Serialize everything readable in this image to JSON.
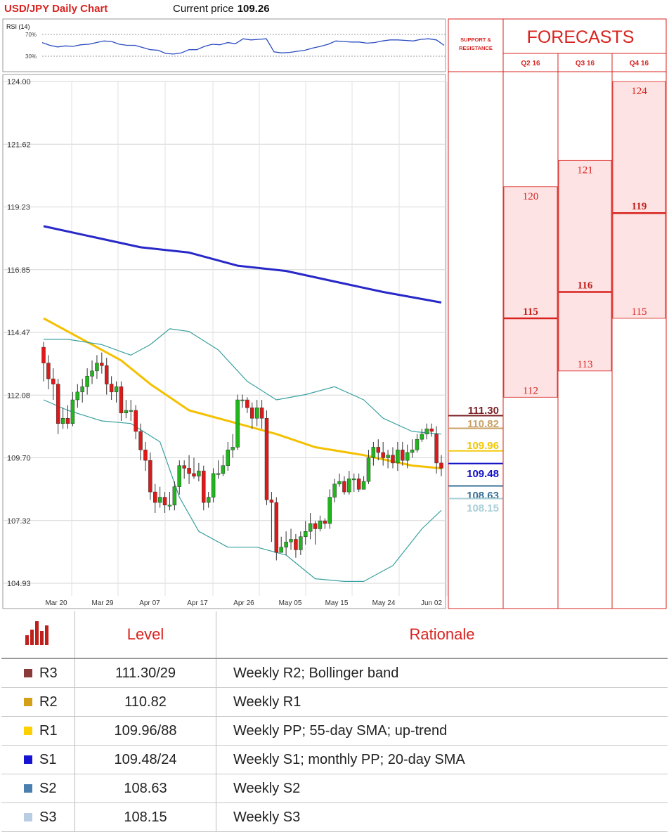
{
  "header": {
    "title": "USD/JPY Daily Chart",
    "price_label": "Current price",
    "price_value": "109.26"
  },
  "rsi": {
    "label": "RSI (14)",
    "levels": [
      "70%",
      "30%"
    ],
    "values": [
      55,
      50,
      47,
      49,
      48,
      51,
      52,
      55,
      58,
      57,
      52,
      50,
      50,
      46,
      42,
      41,
      35,
      34,
      36,
      42,
      42,
      48,
      52,
      51,
      55,
      53,
      62,
      60,
      61,
      62,
      38,
      36,
      37,
      39,
      41,
      45,
      48,
      52,
      58,
      57,
      56,
      56,
      54,
      55,
      58,
      60,
      60,
      59,
      58,
      61,
      62,
      60,
      50
    ],
    "color": "#2a4cc0"
  },
  "support_resistance_title": [
    "SUPPORT &",
    "RESISTANCE"
  ],
  "forecasts": {
    "title": "FORECASTS",
    "columns": [
      {
        "label": "Q2 16",
        "high": 120,
        "mid": 115,
        "low": 112,
        "high_label": "120",
        "mid_label": "115",
        "low_label": "112"
      },
      {
        "label": "Q3 16",
        "high": 121,
        "mid": 116,
        "low": 113,
        "high_label": "121",
        "mid_label": "116",
        "low_label": "113"
      },
      {
        "label": "Q4 16",
        "high": 124,
        "mid": 119,
        "low": 115,
        "high_label": "124",
        "mid_label": "119",
        "low_label": "115"
      }
    ]
  },
  "chart_data": {
    "type": "candlestick",
    "title": "USD/JPY Daily Chart",
    "y_ticks": [
      "124.00",
      "121.62",
      "119.23",
      "116.85",
      "114.47",
      "112.08",
      "109.70",
      "107.32",
      "104.93"
    ],
    "ylim": [
      104.93,
      124.0
    ],
    "x_ticks": [
      "Mar 20",
      "Mar 29",
      "Apr 07",
      "Apr 17",
      "Apr 26",
      "May 05",
      "May 15",
      "May 24",
      "Jun 02"
    ],
    "grid": true,
    "candles": [
      [
        113.9,
        113.3,
        114.1,
        112.6
      ],
      [
        113.3,
        112.7,
        113.6,
        112.3
      ],
      [
        112.7,
        112.5,
        113.1,
        111.9
      ],
      [
        112.5,
        111.0,
        112.7,
        110.6
      ],
      [
        111.0,
        111.2,
        111.6,
        110.8
      ],
      [
        111.2,
        111.0,
        111.7,
        110.8
      ],
      [
        111.0,
        111.9,
        112.2,
        110.9
      ],
      [
        111.9,
        112.2,
        112.5,
        111.6
      ],
      [
        112.2,
        112.4,
        112.7,
        111.8
      ],
      [
        112.4,
        112.8,
        113.1,
        112.1
      ],
      [
        112.8,
        113.0,
        113.4,
        112.5
      ],
      [
        113.0,
        113.3,
        113.6,
        112.7
      ],
      [
        113.3,
        113.2,
        113.7,
        112.9
      ],
      [
        113.2,
        112.5,
        113.5,
        112.1
      ],
      [
        112.5,
        112.2,
        112.8,
        111.9
      ],
      [
        112.2,
        112.4,
        112.6,
        111.8
      ],
      [
        112.4,
        111.4,
        112.6,
        111.1
      ],
      [
        111.4,
        111.5,
        111.9,
        111.2
      ],
      [
        111.5,
        111.5,
        111.9,
        111.1
      ],
      [
        111.5,
        110.7,
        111.7,
        110.4
      ],
      [
        110.7,
        110.0,
        111.0,
        109.6
      ],
      [
        110.0,
        109.6,
        110.3,
        109.2
      ],
      [
        109.6,
        108.4,
        109.9,
        108.1
      ],
      [
        108.4,
        108.0,
        108.7,
        107.6
      ],
      [
        108.0,
        108.2,
        108.6,
        107.8
      ],
      [
        108.2,
        107.9,
        108.4,
        107.6
      ],
      [
        107.9,
        107.9,
        108.4,
        107.7
      ],
      [
        107.9,
        108.6,
        108.8,
        107.7
      ],
      [
        108.6,
        109.4,
        109.6,
        108.3
      ],
      [
        109.4,
        109.3,
        109.6,
        108.9
      ],
      [
        109.3,
        109.1,
        109.8,
        108.7
      ],
      [
        109.1,
        109.0,
        109.7,
        108.9
      ],
      [
        109.0,
        109.2,
        109.5,
        108.8
      ],
      [
        109.2,
        108.0,
        109.4,
        107.7
      ],
      [
        108.0,
        108.2,
        108.4,
        107.8
      ],
      [
        108.2,
        109.1,
        109.3,
        108.0
      ],
      [
        109.1,
        109.1,
        109.6,
        108.9
      ],
      [
        109.1,
        109.4,
        109.8,
        109.0
      ],
      [
        109.4,
        110.0,
        110.3,
        109.2
      ],
      [
        110.0,
        110.1,
        110.6,
        109.7
      ],
      [
        110.1,
        111.9,
        112.1,
        110.0
      ],
      [
        111.9,
        111.9,
        112.1,
        111.6
      ],
      [
        111.9,
        111.6,
        112.0,
        111.4
      ],
      [
        111.6,
        111.2,
        111.8,
        110.8
      ],
      [
        111.2,
        111.6,
        111.9,
        110.9
      ],
      [
        111.6,
        111.2,
        111.9,
        110.8
      ],
      [
        111.2,
        108.1,
        111.5,
        107.9
      ],
      [
        108.1,
        108.0,
        108.4,
        106.5
      ],
      [
        108.0,
        106.1,
        108.2,
        105.8
      ],
      [
        106.1,
        106.3,
        106.7,
        106.1
      ],
      [
        106.3,
        106.5,
        106.9,
        106.0
      ],
      [
        106.5,
        106.6,
        107.0,
        106.2
      ],
      [
        106.6,
        106.2,
        106.8,
        105.9
      ],
      [
        106.2,
        106.7,
        106.9,
        106.0
      ],
      [
        106.7,
        106.9,
        107.3,
        106.4
      ],
      [
        106.9,
        107.2,
        107.6,
        106.6
      ],
      [
        107.2,
        107.0,
        107.3,
        106.4
      ],
      [
        107.0,
        107.3,
        107.5,
        106.9
      ],
      [
        107.3,
        107.2,
        107.4,
        107.0
      ],
      [
        107.2,
        108.2,
        108.5,
        107.0
      ],
      [
        108.2,
        108.7,
        108.9,
        108.0
      ],
      [
        108.7,
        108.8,
        109.1,
        108.6
      ],
      [
        108.8,
        108.4,
        109.0,
        108.3
      ],
      [
        108.4,
        108.9,
        109.2,
        108.3
      ],
      [
        108.9,
        108.9,
        109.1,
        108.4
      ],
      [
        108.9,
        108.5,
        109.1,
        108.4
      ],
      [
        108.5,
        108.8,
        109.0,
        108.5
      ],
      [
        108.8,
        109.7,
        110.0,
        108.7
      ],
      [
        109.7,
        110.1,
        110.3,
        109.4
      ],
      [
        110.1,
        109.9,
        110.4,
        109.6
      ],
      [
        109.9,
        109.7,
        110.3,
        109.4
      ],
      [
        109.7,
        109.8,
        110.0,
        109.3
      ],
      [
        109.8,
        109.5,
        110.1,
        109.3
      ],
      [
        109.5,
        110.0,
        110.3,
        109.2
      ],
      [
        110.0,
        109.6,
        110.3,
        109.4
      ],
      [
        109.6,
        109.9,
        110.2,
        109.3
      ],
      [
        109.9,
        110.0,
        110.4,
        109.7
      ],
      [
        110.0,
        110.4,
        110.6,
        109.9
      ],
      [
        110.4,
        110.6,
        110.8,
        110.3
      ],
      [
        110.6,
        110.8,
        111.0,
        110.4
      ],
      [
        110.8,
        110.7,
        111.0,
        110.5
      ],
      [
        110.6,
        109.5,
        110.9,
        109.1
      ],
      [
        109.5,
        109.3,
        109.8,
        109.0
      ]
    ],
    "series": [
      {
        "color": "#2828c8",
        "values": [
          [
            0,
            118.5
          ],
          [
            10,
            118.1
          ],
          [
            20,
            117.7
          ],
          [
            30,
            117.5
          ],
          [
            40,
            117.0
          ],
          [
            50,
            116.8
          ],
          [
            60,
            116.4
          ],
          [
            70,
            116.0
          ],
          [
            82,
            115.6
          ]
        ]
      },
      {
        "color": "#f5c000",
        "values": [
          [
            0,
            115.0
          ],
          [
            8,
            114.2
          ],
          [
            16,
            113.4
          ],
          [
            22,
            112.5
          ],
          [
            30,
            111.5
          ],
          [
            40,
            111.0
          ],
          [
            48,
            110.6
          ],
          [
            56,
            110.1
          ],
          [
            66,
            109.8
          ],
          [
            76,
            109.4
          ],
          [
            82,
            109.3
          ]
        ]
      },
      {
        "color": "#3aa0a0",
        "values": [
          [
            0,
            114.2
          ],
          [
            5,
            114.2
          ],
          [
            12,
            114.0
          ],
          [
            18,
            113.6
          ],
          [
            22,
            114.0
          ],
          [
            26,
            114.6
          ],
          [
            30,
            114.5
          ],
          [
            36,
            113.8
          ],
          [
            42,
            112.6
          ],
          [
            48,
            111.9
          ],
          [
            54,
            112.1
          ],
          [
            60,
            112.4
          ],
          [
            66,
            111.9
          ],
          [
            70,
            111.2
          ],
          [
            76,
            110.7
          ],
          [
            82,
            110.6
          ]
        ]
      },
      {
        "color": "#3aa0a0",
        "values": [
          [
            0,
            111.9
          ],
          [
            5,
            111.5
          ],
          [
            12,
            111.1
          ],
          [
            18,
            111.0
          ],
          [
            24,
            110.3
          ],
          [
            28,
            108.2
          ],
          [
            32,
            106.9
          ],
          [
            38,
            106.3
          ],
          [
            44,
            106.3
          ],
          [
            50,
            106.0
          ],
          [
            56,
            105.1
          ],
          [
            62,
            105.0
          ],
          [
            66,
            105.0
          ],
          [
            72,
            105.6
          ],
          [
            78,
            107.0
          ],
          [
            82,
            107.7
          ]
        ]
      }
    ]
  },
  "chart_levels": [
    {
      "value": 111.3,
      "label": "111.30",
      "color": "#7a1f24"
    },
    {
      "value": 110.82,
      "label": "110.82",
      "color": "#c8a165"
    },
    {
      "value": 109.96,
      "label": "109.96",
      "color": "#f2c600"
    },
    {
      "value": 109.48,
      "label": "109.48",
      "color": "#1010c8"
    },
    {
      "value": 108.63,
      "label": "108.63",
      "color": "#3a6f96"
    },
    {
      "value": 108.15,
      "label": "108.15",
      "color": "#a8cfd6"
    }
  ],
  "table": {
    "headers": {
      "level": "Level",
      "rationale": "Rationale"
    },
    "rows": [
      {
        "code": "R3",
        "level": "111.30/29",
        "rationale": "Weekly R2; Bollinger band",
        "color": "#8b3a3a"
      },
      {
        "code": "R2",
        "level": "110.82",
        "rationale": "Weekly R1",
        "color": "#d4a017"
      },
      {
        "code": "R1",
        "level": "109.96/88",
        "rationale": "Weekly PP; 55-day SMA; up-trend",
        "color": "#ffd000"
      },
      {
        "code": "S1",
        "level": "109.48/24",
        "rationale": "Weekly S1; monthly PP; 20-day SMA",
        "color": "#1414d2"
      },
      {
        "code": "S2",
        "level": "108.63",
        "rationale": "Weekly S2",
        "color": "#4a7fb0"
      },
      {
        "code": "S3",
        "level": "108.15",
        "rationale": "Weekly S3",
        "color": "#b8cce4"
      }
    ]
  }
}
